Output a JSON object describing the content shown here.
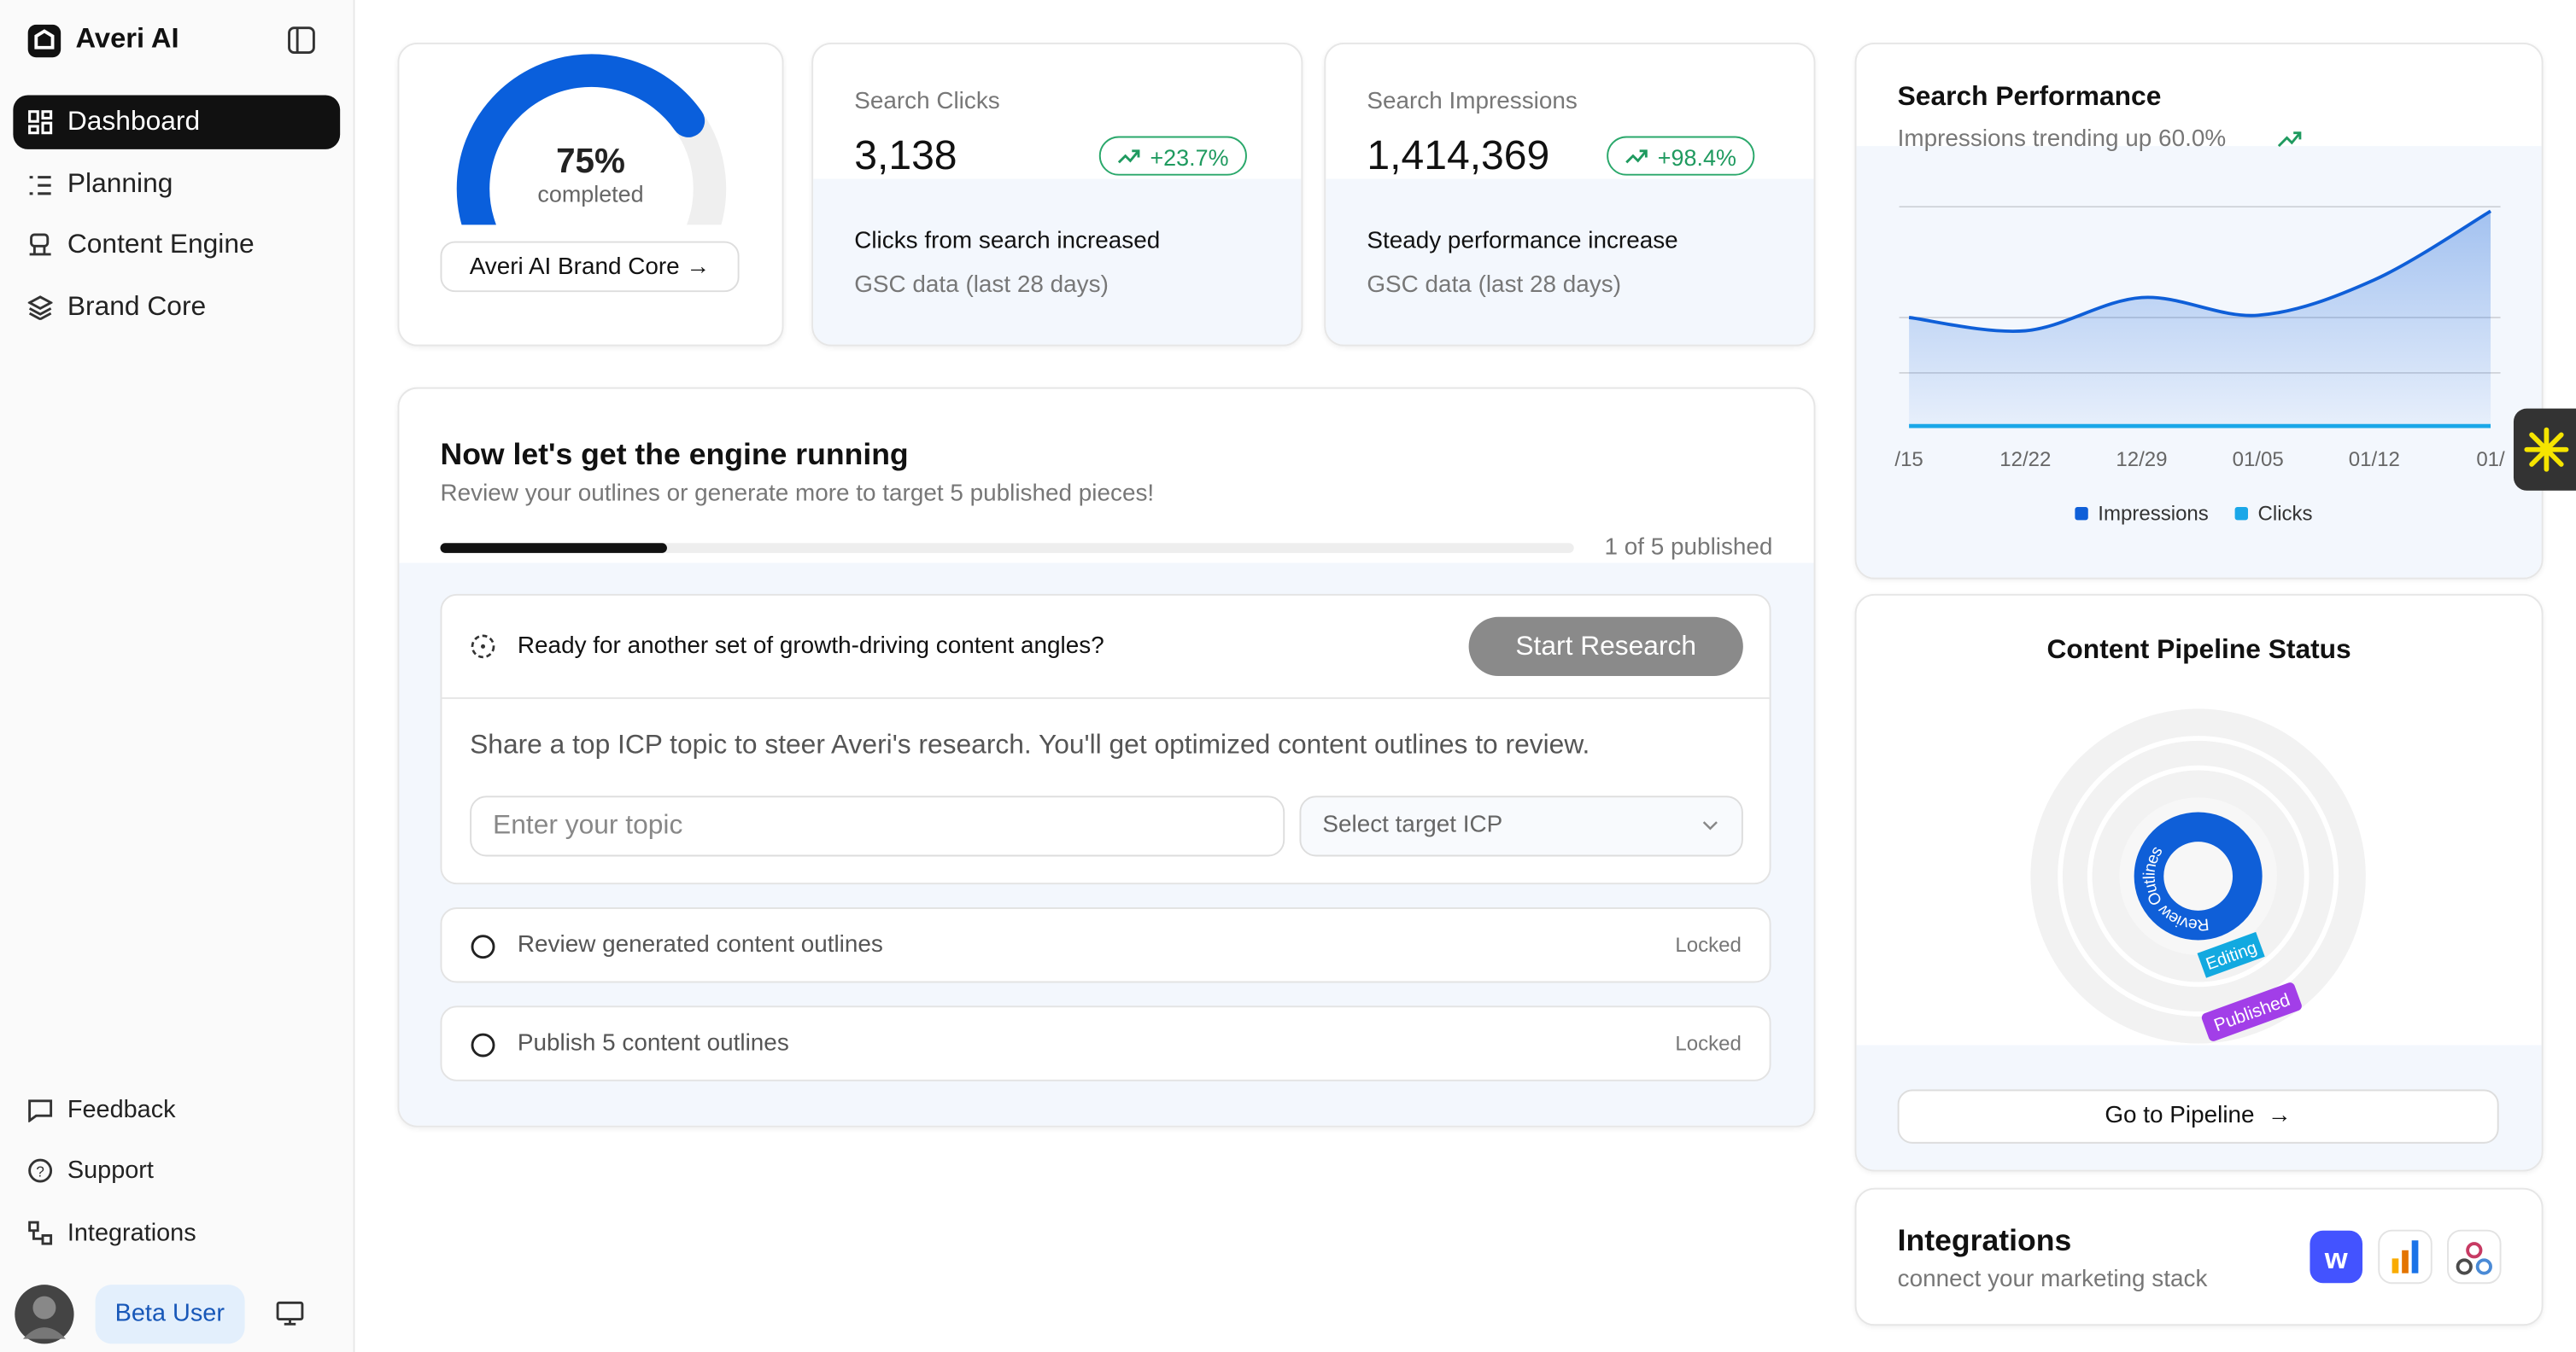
{
  "sidebar": {
    "brand": "Averi AI",
    "nav": [
      "Dashboard",
      "Planning",
      "Content Engine",
      "Brand Core"
    ],
    "footer_nav": [
      "Feedback",
      "Support",
      "Integrations"
    ],
    "user": "Beta User"
  },
  "chart_data": [
    {
      "type": "gauge",
      "value": 75,
      "value_label": "75%",
      "caption": "completed",
      "ylim": [
        0,
        100
      ],
      "color": "#0a5fdc"
    },
    {
      "type": "line",
      "title": "Search Performance",
      "subtitle": "Impressions trending up 60.0%",
      "categories": [
        "/15",
        "12/22",
        "12/29",
        "01/05",
        "01/12",
        "01/"
      ],
      "series": [
        {
          "name": "Impressions",
          "color": "#0f5fd8",
          "values": [
            50,
            44,
            59,
            51,
            67,
            98
          ]
        },
        {
          "name": "Clicks",
          "color": "#1aa7e8",
          "values": [
            1,
            1,
            1,
            1,
            1,
            1
          ]
        }
      ],
      "ylim": [
        0,
        100
      ],
      "grid": true,
      "legend": "bottom"
    }
  ],
  "brand_core": {
    "button": "Averi AI Brand Core"
  },
  "metrics": [
    {
      "label": "Search Clicks",
      "value": "3,138",
      "change": "+23.7%",
      "headline": "Clicks from search increased",
      "note": "GSC data (last 28 days)"
    },
    {
      "label": "Search Impressions",
      "value": "1,414,369",
      "change": "+98.4%",
      "headline": "Steady performance increase",
      "note": "GSC data (last 28 days)"
    }
  ],
  "engine": {
    "title": "Now let's get the engine running",
    "subtitle": "Review your outlines or generate more to target 5 published pieces!",
    "progress": "1 of 5 published",
    "research": {
      "prompt": "Ready for another set of growth-driving content angles?",
      "button": "Start Research",
      "description": "Share a top ICP topic to steer Averi's research. You'll get optimized content outlines to review.",
      "topic_placeholder": "Enter your topic",
      "icp_placeholder": "Select target ICP"
    },
    "steps": [
      {
        "label": "Review generated content outlines",
        "status": "Locked"
      },
      {
        "label": "Publish 5 content outlines",
        "status": "Locked"
      }
    ]
  },
  "pipeline": {
    "title": "Content Pipeline Status",
    "stages": [
      "Review Outlines",
      "Editing",
      "Published"
    ],
    "button": "Go to Pipeline"
  },
  "integrations": {
    "title": "Integrations",
    "subtitle": "connect your marketing stack"
  }
}
